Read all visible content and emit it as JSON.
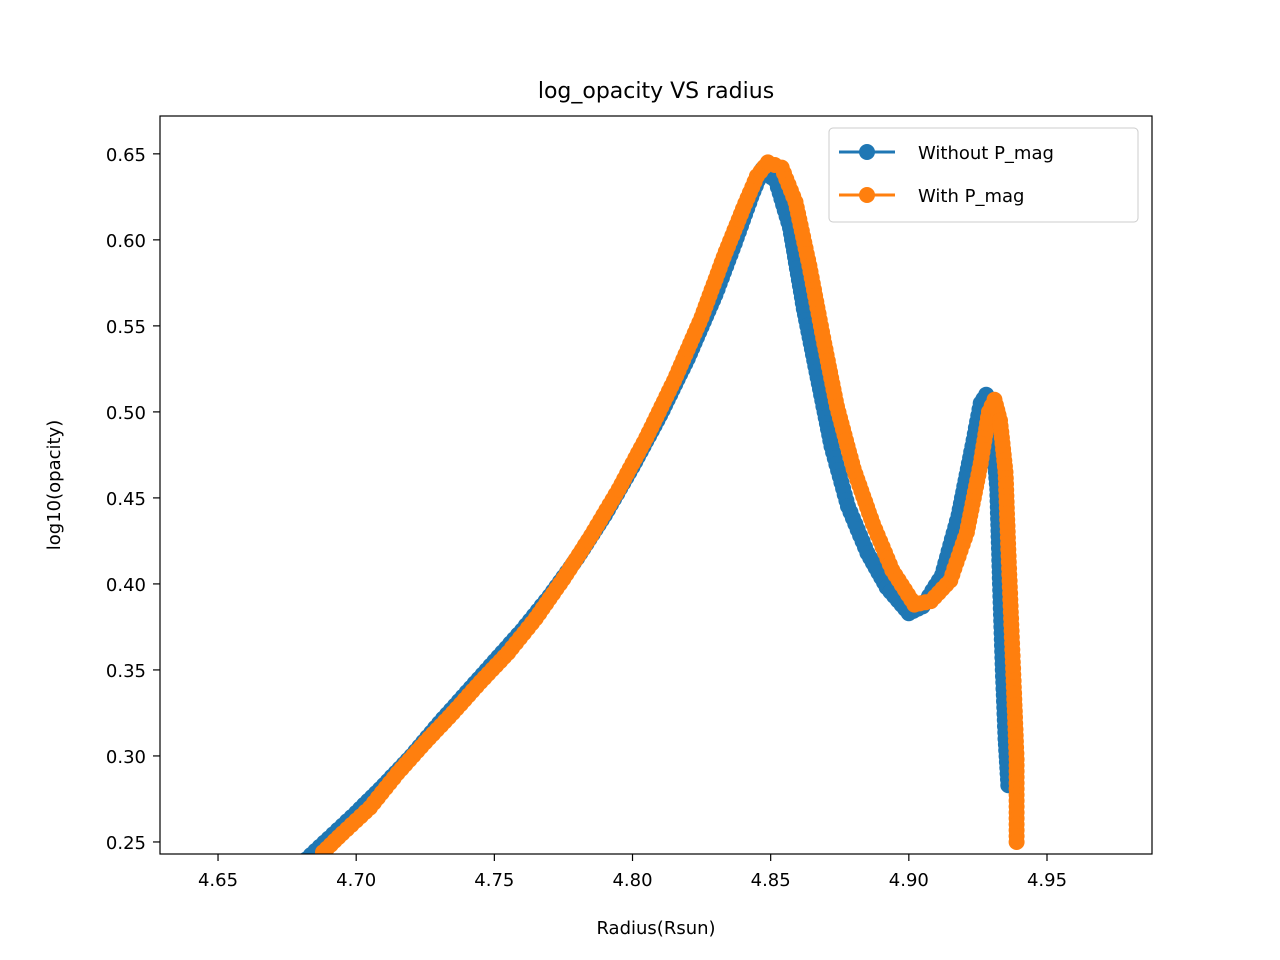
{
  "chart_data": {
    "type": "line",
    "title": "log_opacity VS radius",
    "xlabel": "Radius(Rsun)",
    "ylabel": "log10(opacity)",
    "xlim": [
      4.629,
      4.988
    ],
    "ylim": [
      0.243,
      0.672
    ],
    "xticks": [
      4.65,
      4.7,
      4.75,
      4.8,
      4.85,
      4.9,
      4.95
    ],
    "xtick_labels": [
      "4.65",
      "4.70",
      "4.75",
      "4.80",
      "4.85",
      "4.90",
      "4.95"
    ],
    "yticks": [
      0.25,
      0.3,
      0.35,
      0.4,
      0.45,
      0.5,
      0.55,
      0.6,
      0.65
    ],
    "ytick_labels": [
      "0.25",
      "0.30",
      "0.35",
      "0.40",
      "0.45",
      "0.50",
      "0.55",
      "0.60",
      "0.65"
    ],
    "grid": false,
    "legend_position": "top-right",
    "markers": true,
    "series": [
      {
        "name": "Without P_mag",
        "color": "#1f77b4",
        "points": [
          [
            4.682,
            0.24
          ],
          [
            4.69,
            0.252
          ],
          [
            4.7,
            0.267
          ],
          [
            4.71,
            0.283
          ],
          [
            4.72,
            0.3
          ],
          [
            4.73,
            0.319
          ],
          [
            4.74,
            0.337
          ],
          [
            4.75,
            0.355
          ],
          [
            4.76,
            0.373
          ],
          [
            4.77,
            0.393
          ],
          [
            4.78,
            0.415
          ],
          [
            4.79,
            0.44
          ],
          [
            4.8,
            0.468
          ],
          [
            4.81,
            0.498
          ],
          [
            4.82,
            0.531
          ],
          [
            4.83,
            0.568
          ],
          [
            4.837,
            0.598
          ],
          [
            4.843,
            0.625
          ],
          [
            4.847,
            0.641
          ],
          [
            4.852,
            0.634
          ],
          [
            4.857,
            0.607
          ],
          [
            4.862,
            0.56
          ],
          [
            4.867,
            0.52
          ],
          [
            4.872,
            0.48
          ],
          [
            4.878,
            0.445
          ],
          [
            4.885,
            0.418
          ],
          [
            4.892,
            0.398
          ],
          [
            4.9,
            0.383
          ],
          [
            4.905,
            0.387
          ],
          [
            4.912,
            0.405
          ],
          [
            4.918,
            0.44
          ],
          [
            4.923,
            0.48
          ],
          [
            4.926,
            0.505
          ],
          [
            4.928,
            0.51
          ],
          [
            4.93,
            0.495
          ],
          [
            4.932,
            0.455
          ],
          [
            4.933,
            0.4
          ],
          [
            4.934,
            0.35
          ],
          [
            4.935,
            0.31
          ],
          [
            4.936,
            0.283
          ]
        ]
      },
      {
        "name": "With P_mag",
        "color": "#ff7f0e",
        "points": [
          [
            4.688,
            0.244
          ],
          [
            4.695,
            0.255
          ],
          [
            4.705,
            0.27
          ],
          [
            4.715,
            0.29
          ],
          [
            4.725,
            0.308
          ],
          [
            4.735,
            0.325
          ],
          [
            4.745,
            0.343
          ],
          [
            4.755,
            0.36
          ],
          [
            4.765,
            0.38
          ],
          [
            4.775,
            0.403
          ],
          [
            4.785,
            0.428
          ],
          [
            4.795,
            0.455
          ],
          [
            4.805,
            0.485
          ],
          [
            4.815,
            0.518
          ],
          [
            4.825,
            0.555
          ],
          [
            4.833,
            0.59
          ],
          [
            4.84,
            0.618
          ],
          [
            4.845,
            0.637
          ],
          [
            4.849,
            0.645
          ],
          [
            4.854,
            0.642
          ],
          [
            4.859,
            0.622
          ],
          [
            4.864,
            0.585
          ],
          [
            4.869,
            0.543
          ],
          [
            4.874,
            0.503
          ],
          [
            4.88,
            0.467
          ],
          [
            4.887,
            0.435
          ],
          [
            4.894,
            0.408
          ],
          [
            4.902,
            0.388
          ],
          [
            4.908,
            0.39
          ],
          [
            4.915,
            0.402
          ],
          [
            4.921,
            0.43
          ],
          [
            4.926,
            0.47
          ],
          [
            4.929,
            0.5
          ],
          [
            4.931,
            0.507
          ],
          [
            4.933,
            0.495
          ],
          [
            4.935,
            0.465
          ],
          [
            4.936,
            0.42
          ],
          [
            4.937,
            0.38
          ],
          [
            4.938,
            0.34
          ],
          [
            4.939,
            0.298
          ],
          [
            4.939,
            0.25
          ]
        ]
      }
    ]
  }
}
